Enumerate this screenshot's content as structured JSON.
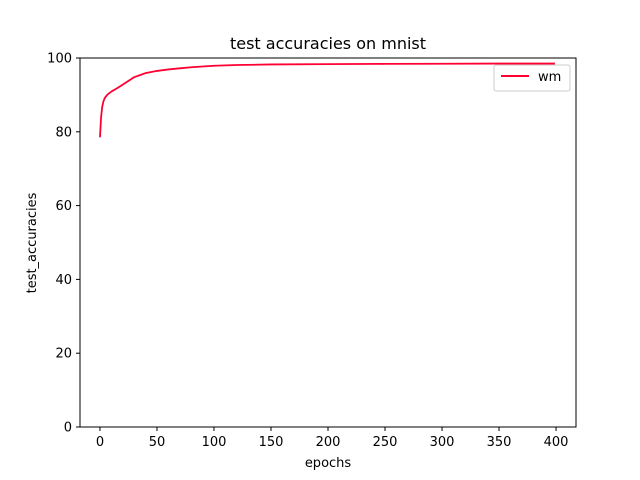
{
  "chart_data": {
    "type": "line",
    "title": "test accuracies on mnist",
    "xlabel": "epochs",
    "ylabel": "test_accuracies",
    "xlim": [
      -17.5,
      417.5
    ],
    "ylim": [
      0,
      100
    ],
    "xticks": [
      0,
      50,
      100,
      150,
      200,
      250,
      300,
      350,
      400
    ],
    "yticks": [
      0,
      20,
      40,
      60,
      80,
      100
    ],
    "grid": false,
    "legend_position": "upper right",
    "series": [
      {
        "name": "wm",
        "color": "#ff0033",
        "x": [
          0,
          1,
          2,
          3,
          4,
          5,
          7,
          10,
          15,
          20,
          25,
          30,
          40,
          50,
          60,
          70,
          80,
          100,
          120,
          150,
          200,
          250,
          300,
          350,
          399
        ],
        "y": [
          78.5,
          84.0,
          86.8,
          88.2,
          89.0,
          89.5,
          90.2,
          90.9,
          91.8,
          92.8,
          93.8,
          94.8,
          95.9,
          96.5,
          96.9,
          97.2,
          97.5,
          97.9,
          98.1,
          98.25,
          98.35,
          98.4,
          98.45,
          98.5,
          98.5
        ]
      }
    ]
  }
}
